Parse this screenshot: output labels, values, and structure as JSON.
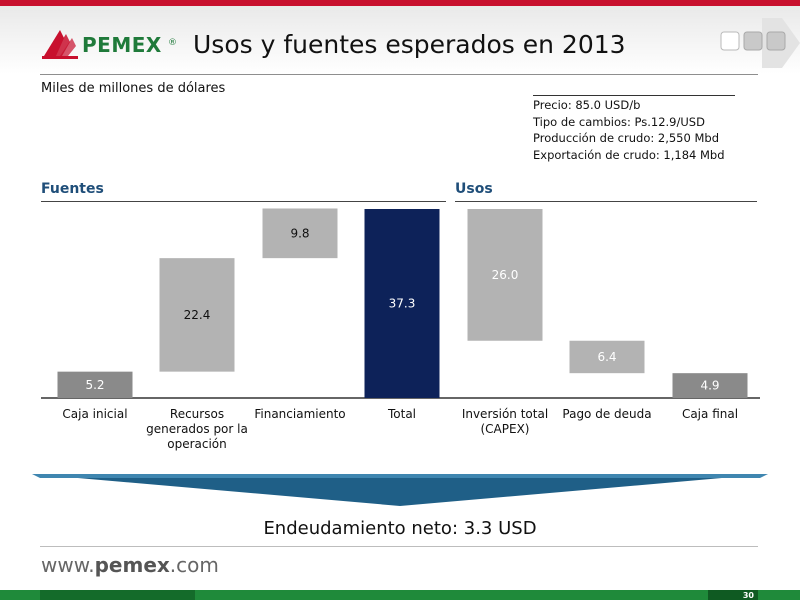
{
  "header": {
    "logo_text": "PEMEX",
    "logo_reg": "®",
    "title": "Usos y fuentes esperados en 2013"
  },
  "units": "Miles de millones de dólares",
  "assumptions": [
    "Precio: 85.0 USD/b",
    "Tipo de cambios: Ps.12.9/USD",
    "Producción de crudo: 2,550 Mbd",
    "Exportación de crudo: 1,184 Mbd"
  ],
  "sections": {
    "sources": "Fuentes",
    "uses": "Usos"
  },
  "chart_data": {
    "type": "bar",
    "subtype": "waterfall",
    "categories": [
      "Caja inicial",
      "Recursos generados por la operación",
      "Financiamiento",
      "Total",
      "Inversión total (CAPEX)",
      "Pago de deuda",
      "Caja final"
    ],
    "category_lines": [
      [
        "Caja inicial"
      ],
      [
        "Recursos",
        "generados por la",
        "operación"
      ],
      [
        "Financiamiento"
      ],
      [
        "Total"
      ],
      [
        "Inversión total",
        "(CAPEX)"
      ],
      [
        "Pago de deuda"
      ],
      [
        "Caja final"
      ]
    ],
    "values": [
      5.2,
      22.4,
      9.8,
      37.3,
      26.0,
      6.4,
      4.9
    ],
    "labels": [
      "5.2",
      "22.4",
      "9.8",
      "37.3",
      "26.0",
      "6.4",
      "4.9"
    ],
    "bar_kind": [
      "increase",
      "increase",
      "increase",
      "total",
      "decrease",
      "decrease",
      "total"
    ],
    "ylim": [
      0,
      37.3
    ],
    "grid": false,
    "colors": {
      "total": "#0d2259",
      "step": "#b3b3b3",
      "end_box": "#8a8a8a",
      "label_light": "#ffffff",
      "label_dark": "#111111"
    }
  },
  "footer": {
    "debt_label": "Endeudamiento neto:",
    "debt_value": "3.3 USD",
    "www_prefix": "www.",
    "www_brand": "pemex",
    "www_suffix": ".com",
    "page_number": "30"
  },
  "colors": {
    "brand_red": "#c8102e",
    "brand_green": "#1f8a3a",
    "section_blue": "#1f4e79",
    "banner_blue": "#1f5f87"
  }
}
